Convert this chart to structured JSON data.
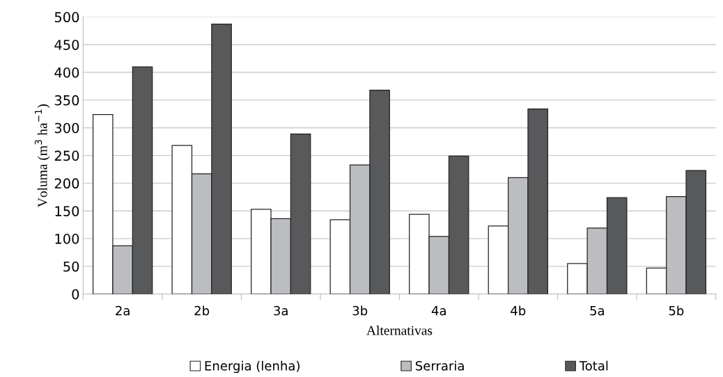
{
  "chart_data": {
    "type": "bar",
    "xlabel": "Alternativas",
    "ylabel": "Voluma (m$^{3}$ ha$^{−1}$)",
    "categories": [
      "2a",
      "2b",
      "3a",
      "3b",
      "4a",
      "4b",
      "5a",
      "5b"
    ],
    "series": [
      {
        "name": "Energia (lenha)",
        "color": "#ffffff",
        "values": [
          324,
          268,
          153,
          134,
          144,
          123,
          55,
          47
        ]
      },
      {
        "name": "Serraria",
        "color": "#bcbdc0",
        "values": [
          87,
          217,
          136,
          233,
          104,
          210,
          119,
          176
        ]
      },
      {
        "name": "Total",
        "color": "#58595b",
        "values": [
          410,
          487,
          289,
          368,
          249,
          334,
          174,
          223
        ]
      }
    ],
    "ylim": [
      0,
      500
    ],
    "yticks": [
      0,
      50,
      100,
      150,
      200,
      250,
      300,
      350,
      400,
      450,
      500
    ],
    "grid": "y",
    "legend": "bottom"
  }
}
